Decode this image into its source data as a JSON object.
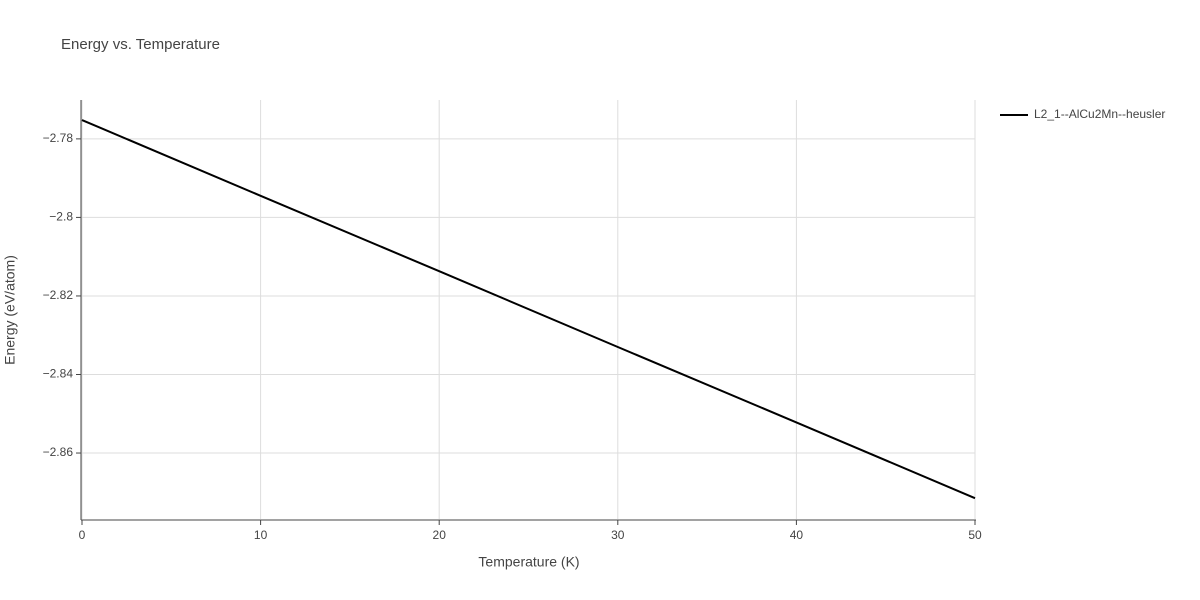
{
  "chart_data": {
    "type": "line",
    "title": "Energy vs. Temperature",
    "x_label": "Temperature (K)",
    "y_label": "Energy (eV/atom)",
    "x": [
      0,
      10,
      20,
      30,
      40,
      50
    ],
    "series": [
      {
        "name": "L2_1--AlCu2Mn--heusler",
        "color": "#000000",
        "values": [
          -2.7752,
          -2.7945,
          -2.8137,
          -2.833,
          -2.8522,
          -2.8715
        ]
      }
    ],
    "xlim": [
      0,
      50
    ],
    "xticks": [
      0,
      10,
      20,
      30,
      40,
      50
    ],
    "ylim": [
      -2.8768,
      -2.7701
    ],
    "yticks": [
      {
        "value": -2.86,
        "label": "−2.86"
      },
      {
        "value": -2.84,
        "label": "−2.84"
      },
      {
        "value": -2.82,
        "label": "−2.82"
      },
      {
        "value": -2.8,
        "label": "−2.8"
      },
      {
        "value": -2.78,
        "label": "−2.78"
      }
    ],
    "grid": true,
    "legend": "right"
  }
}
